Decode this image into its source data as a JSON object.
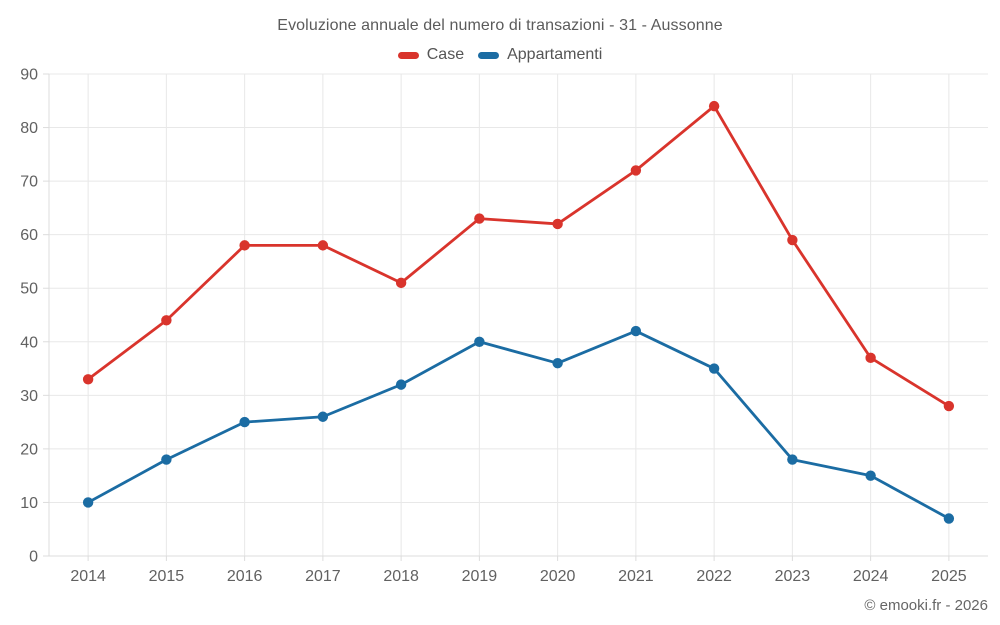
{
  "chart": {
    "title": "Evoluzione annuale del numero di transazioni - 31 - Aussonne",
    "footer": "© emooki.fr - 2026"
  },
  "chart_data": {
    "type": "line",
    "title": "Evoluzione annuale del numero di transazioni - 31 - Aussonne",
    "categories": [
      "2014",
      "2015",
      "2016",
      "2017",
      "2018",
      "2019",
      "2020",
      "2021",
      "2022",
      "2023",
      "2024",
      "2025"
    ],
    "series": [
      {
        "name": "Case",
        "color": "#d9342c",
        "values": [
          33,
          44,
          58,
          58,
          51,
          63,
          62,
          72,
          84,
          59,
          37,
          28
        ]
      },
      {
        "name": "Appartamenti",
        "color": "#1b6ca3",
        "values": [
          10,
          18,
          25,
          26,
          32,
          40,
          36,
          42,
          35,
          18,
          15,
          7
        ]
      }
    ],
    "xlabel": "",
    "ylabel": "",
    "ylim": [
      0,
      90
    ],
    "ytick_step": 10,
    "grid": true,
    "legend_position": "top",
    "grid_color": "#e8e8e8",
    "axis_color": "#dcdcdc",
    "marker_radius": 5.2,
    "line_width": 2.8
  }
}
